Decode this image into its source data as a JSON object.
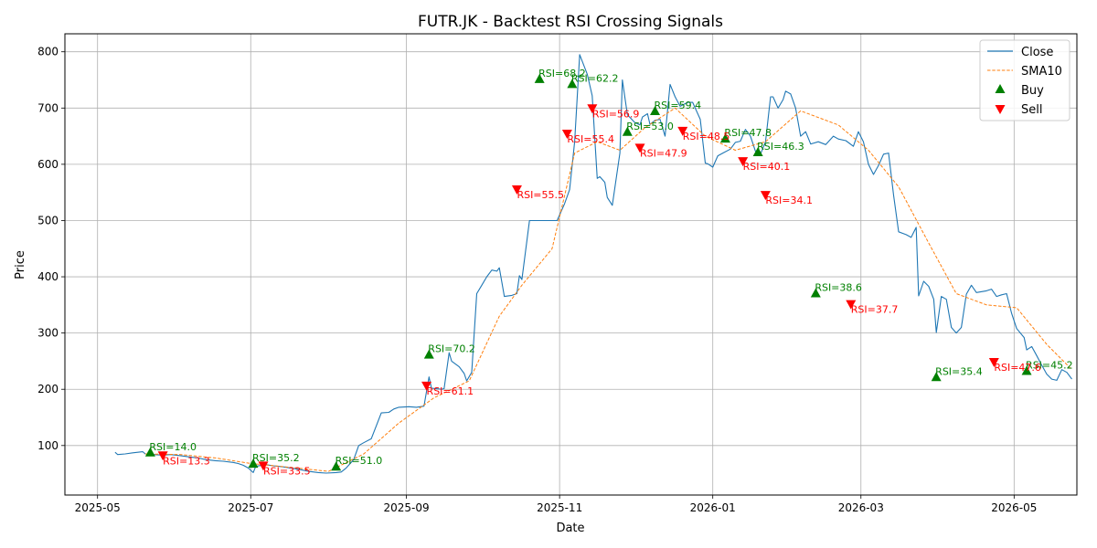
{
  "chart_data": {
    "type": "line",
    "title": "FUTR.JK - Backtest RSI Crossing Signals",
    "xlabel": "Date",
    "ylabel": "Price",
    "x_range": [
      "2025-04-18",
      "2026-05-26"
    ],
    "ylim": [
      12,
      832
    ],
    "x_ticks": [
      {
        "date": "2025-05-01",
        "label": "2025-05"
      },
      {
        "date": "2025-07-01",
        "label": "2025-07"
      },
      {
        "date": "2025-09-01",
        "label": "2025-09"
      },
      {
        "date": "2025-11-01",
        "label": "2025-11"
      },
      {
        "date": "2026-01-01",
        "label": "2026-01"
      },
      {
        "date": "2026-03-01",
        "label": "2026-03"
      },
      {
        "date": "2026-05-01",
        "label": "2026-05"
      }
    ],
    "y_ticks": [
      100,
      200,
      300,
      400,
      500,
      600,
      700,
      800
    ],
    "grid": true,
    "legend": {
      "position": "top-right",
      "entries": [
        {
          "label": "Close",
          "kind": "line",
          "color": "#1f77b4"
        },
        {
          "label": "SMA10",
          "kind": "dashed",
          "color": "#ff7f0e"
        },
        {
          "label": "Buy",
          "kind": "triangle-up",
          "color": "#008000"
        },
        {
          "label": "Sell",
          "kind": "triangle-down",
          "color": "#ff0000"
        }
      ]
    },
    "series": [
      {
        "name": "Close",
        "color": "#1f77b4",
        "style": "solid",
        "points": [
          [
            "2025-05-08",
            88
          ],
          [
            "2025-05-09",
            84
          ],
          [
            "2025-05-12",
            85
          ],
          [
            "2025-05-15",
            87
          ],
          [
            "2025-05-19",
            89
          ],
          [
            "2025-05-20",
            85
          ],
          [
            "2025-05-23",
            84
          ],
          [
            "2025-05-27",
            83
          ],
          [
            "2025-05-30",
            84
          ],
          [
            "2025-06-03",
            82
          ],
          [
            "2025-06-06",
            80
          ],
          [
            "2025-06-10",
            78
          ],
          [
            "2025-06-13",
            75
          ],
          [
            "2025-06-17",
            73
          ],
          [
            "2025-06-20",
            72
          ],
          [
            "2025-06-24",
            70
          ],
          [
            "2025-06-26",
            68
          ],
          [
            "2025-06-28",
            65
          ],
          [
            "2025-06-30",
            60
          ],
          [
            "2025-07-02",
            52
          ],
          [
            "2025-07-03",
            63
          ],
          [
            "2025-07-07",
            66
          ],
          [
            "2025-07-10",
            64
          ],
          [
            "2025-07-14",
            62
          ],
          [
            "2025-07-17",
            60
          ],
          [
            "2025-07-21",
            57
          ],
          [
            "2025-07-24",
            54
          ],
          [
            "2025-07-28",
            52
          ],
          [
            "2025-07-31",
            51
          ],
          [
            "2025-08-04",
            52
          ],
          [
            "2025-08-06",
            53
          ],
          [
            "2025-08-08",
            60
          ],
          [
            "2025-08-11",
            75
          ],
          [
            "2025-08-13",
            100
          ],
          [
            "2025-08-15",
            105
          ],
          [
            "2025-08-18",
            112
          ],
          [
            "2025-08-20",
            135
          ],
          [
            "2025-08-22",
            158
          ],
          [
            "2025-08-25",
            159
          ],
          [
            "2025-08-27",
            165
          ],
          [
            "2025-08-29",
            168
          ],
          [
            "2025-09-02",
            169
          ],
          [
            "2025-09-05",
            168
          ],
          [
            "2025-09-08",
            170
          ],
          [
            "2025-09-10",
            222
          ],
          [
            "2025-09-11",
            202
          ],
          [
            "2025-09-15",
            200
          ],
          [
            "2025-09-16",
            201
          ],
          [
            "2025-09-18",
            265
          ],
          [
            "2025-09-19",
            250
          ],
          [
            "2025-09-22",
            240
          ],
          [
            "2025-09-24",
            228
          ],
          [
            "2025-09-25",
            215
          ],
          [
            "2025-09-27",
            230
          ],
          [
            "2025-09-29",
            370
          ],
          [
            "2025-10-01",
            385
          ],
          [
            "2025-10-03",
            400
          ],
          [
            "2025-10-05",
            412
          ],
          [
            "2025-10-07",
            410
          ],
          [
            "2025-10-08",
            416
          ],
          [
            "2025-10-10",
            365
          ],
          [
            "2025-10-13",
            367
          ],
          [
            "2025-10-15",
            370
          ],
          [
            "2025-10-16",
            402
          ],
          [
            "2025-10-17",
            395
          ],
          [
            "2025-10-20",
            500
          ],
          [
            "2025-10-24",
            500
          ],
          [
            "2025-10-28",
            500
          ],
          [
            "2025-10-31",
            500
          ],
          [
            "2025-11-03",
            530
          ],
          [
            "2025-11-05",
            555
          ],
          [
            "2025-11-07",
            640
          ],
          [
            "2025-11-09",
            795
          ],
          [
            "2025-11-12",
            760
          ],
          [
            "2025-11-14",
            722
          ],
          [
            "2025-11-16",
            575
          ],
          [
            "2025-11-17",
            578
          ],
          [
            "2025-11-19",
            568
          ],
          [
            "2025-11-20",
            541
          ],
          [
            "2025-11-22",
            527
          ],
          [
            "2025-11-25",
            620
          ],
          [
            "2025-11-26",
            750
          ],
          [
            "2025-11-28",
            688
          ],
          [
            "2025-12-01",
            674
          ],
          [
            "2025-12-03",
            670
          ],
          [
            "2025-12-04",
            684
          ],
          [
            "2025-12-06",
            690
          ],
          [
            "2025-12-07",
            671
          ],
          [
            "2025-12-09",
            678
          ],
          [
            "2025-12-11",
            680
          ],
          [
            "2025-12-13",
            650
          ],
          [
            "2025-12-15",
            742
          ],
          [
            "2025-12-17",
            720
          ],
          [
            "2025-12-19",
            703
          ],
          [
            "2025-12-22",
            710
          ],
          [
            "2025-12-24",
            710
          ],
          [
            "2025-12-27",
            680
          ],
          [
            "2025-12-29",
            602
          ],
          [
            "2025-12-30",
            601
          ],
          [
            "2026-01-01",
            595
          ],
          [
            "2026-01-03",
            615
          ],
          [
            "2026-01-05",
            620
          ],
          [
            "2026-01-08",
            627
          ],
          [
            "2026-01-10",
            639
          ],
          [
            "2026-01-12",
            641
          ],
          [
            "2026-01-14",
            662
          ],
          [
            "2026-01-16",
            650
          ],
          [
            "2026-01-18",
            623
          ],
          [
            "2026-01-20",
            618
          ],
          [
            "2026-01-22",
            640
          ],
          [
            "2026-01-24",
            720
          ],
          [
            "2026-01-25",
            720
          ],
          [
            "2026-01-27",
            700
          ],
          [
            "2026-01-29",
            715
          ],
          [
            "2026-01-30",
            730
          ],
          [
            "2026-02-01",
            725
          ],
          [
            "2026-02-03",
            700
          ],
          [
            "2026-02-05",
            650
          ],
          [
            "2026-02-07",
            658
          ],
          [
            "2026-02-09",
            636
          ],
          [
            "2026-02-12",
            640
          ],
          [
            "2026-02-15",
            635
          ],
          [
            "2026-02-18",
            650
          ],
          [
            "2026-02-20",
            645
          ],
          [
            "2026-02-23",
            642
          ],
          [
            "2026-02-26",
            632
          ],
          [
            "2026-02-28",
            658
          ],
          [
            "2026-03-02",
            640
          ],
          [
            "2026-03-04",
            600
          ],
          [
            "2026-03-06",
            582
          ],
          [
            "2026-03-08",
            598
          ],
          [
            "2026-03-10",
            618
          ],
          [
            "2026-03-12",
            620
          ],
          [
            "2026-03-14",
            545
          ],
          [
            "2026-03-16",
            480
          ],
          [
            "2026-03-19",
            475
          ],
          [
            "2026-03-21",
            470
          ],
          [
            "2026-03-23",
            488
          ],
          [
            "2026-03-24",
            366
          ],
          [
            "2026-03-26",
            392
          ],
          [
            "2026-03-28",
            383
          ],
          [
            "2026-03-30",
            360
          ],
          [
            "2026-03-31",
            301
          ],
          [
            "2026-04-02",
            365
          ],
          [
            "2026-04-04",
            360
          ],
          [
            "2026-04-06",
            310
          ],
          [
            "2026-04-08",
            300
          ],
          [
            "2026-04-10",
            310
          ],
          [
            "2026-04-12",
            369
          ],
          [
            "2026-04-14",
            385
          ],
          [
            "2026-04-16",
            372
          ],
          [
            "2026-04-20",
            375
          ],
          [
            "2026-04-22",
            378
          ],
          [
            "2026-04-24",
            365
          ],
          [
            "2026-04-26",
            368
          ],
          [
            "2026-04-28",
            370
          ],
          [
            "2026-04-30",
            335
          ],
          [
            "2026-05-02",
            308
          ],
          [
            "2026-05-05",
            292
          ],
          [
            "2026-05-06",
            270
          ],
          [
            "2026-05-08",
            276
          ],
          [
            "2026-05-10",
            260
          ],
          [
            "2026-05-12",
            243
          ],
          [
            "2026-05-14",
            227
          ],
          [
            "2026-05-16",
            218
          ],
          [
            "2026-05-18",
            216
          ],
          [
            "2026-05-20",
            235
          ],
          [
            "2026-05-22",
            230
          ],
          [
            "2026-05-24",
            218
          ]
        ]
      },
      {
        "name": "SMA10",
        "color": "#ff7f0e",
        "style": "dashed",
        "points": [
          [
            "2025-05-20",
            85
          ],
          [
            "2025-06-03",
            84
          ],
          [
            "2025-06-17",
            78
          ],
          [
            "2025-07-01",
            68
          ],
          [
            "2025-07-15",
            62
          ],
          [
            "2025-08-01",
            54
          ],
          [
            "2025-08-15",
            85
          ],
          [
            "2025-08-29",
            140
          ],
          [
            "2025-09-12",
            185
          ],
          [
            "2025-09-26",
            215
          ],
          [
            "2025-10-08",
            330
          ],
          [
            "2025-10-17",
            385
          ],
          [
            "2025-10-29",
            450
          ],
          [
            "2025-11-07",
            620
          ],
          [
            "2025-11-16",
            640
          ],
          [
            "2025-11-25",
            625
          ],
          [
            "2025-12-05",
            665
          ],
          [
            "2025-12-17",
            700
          ],
          [
            "2025-12-29",
            650
          ],
          [
            "2026-01-10",
            625
          ],
          [
            "2026-01-22",
            640
          ],
          [
            "2026-02-05",
            695
          ],
          [
            "2026-02-20",
            670
          ],
          [
            "2026-03-04",
            625
          ],
          [
            "2026-03-16",
            560
          ],
          [
            "2026-03-28",
            460
          ],
          [
            "2026-04-08",
            370
          ],
          [
            "2026-04-20",
            350
          ],
          [
            "2026-05-02",
            345
          ],
          [
            "2026-05-14",
            280
          ],
          [
            "2026-05-24",
            235
          ]
        ]
      }
    ],
    "buy_signals": [
      {
        "date": "2025-05-22",
        "price": 87,
        "label": "RSI=14.0"
      },
      {
        "date": "2025-07-02",
        "price": 67,
        "label": "RSI=35.2"
      },
      {
        "date": "2025-08-04",
        "price": 62,
        "label": "RSI=51.0"
      },
      {
        "date": "2025-09-10",
        "price": 261,
        "label": "RSI=70.2"
      },
      {
        "date": "2025-10-24",
        "price": 751,
        "label": "RSI=68.2"
      },
      {
        "date": "2025-11-06",
        "price": 742,
        "label": "RSI=62.2"
      },
      {
        "date": "2025-11-28",
        "price": 657,
        "label": "RSI=53.0"
      },
      {
        "date": "2025-12-09",
        "price": 694,
        "label": "RSI=59.4"
      },
      {
        "date": "2026-01-06",
        "price": 645,
        "label": "RSI=47.8"
      },
      {
        "date": "2026-01-19",
        "price": 621,
        "label": "RSI=46.3"
      },
      {
        "date": "2026-02-11",
        "price": 370,
        "label": "RSI=38.6"
      },
      {
        "date": "2026-03-31",
        "price": 221,
        "label": "RSI=35.4"
      },
      {
        "date": "2026-05-06",
        "price": 232,
        "label": "RSI=45.2"
      }
    ],
    "sell_signals": [
      {
        "date": "2025-05-27",
        "price": 83,
        "label": "RSI=13.3"
      },
      {
        "date": "2025-07-06",
        "price": 65,
        "label": "RSI=33.5"
      },
      {
        "date": "2025-09-09",
        "price": 207,
        "label": "RSI=61.1"
      },
      {
        "date": "2025-10-15",
        "price": 556,
        "label": "RSI=55.5"
      },
      {
        "date": "2025-11-04",
        "price": 655,
        "label": "RSI=55.4"
      },
      {
        "date": "2025-11-14",
        "price": 700,
        "label": "RSI=56.9"
      },
      {
        "date": "2025-12-03",
        "price": 630,
        "label": "RSI=47.9"
      },
      {
        "date": "2025-12-20",
        "price": 660,
        "label": "RSI=48.5"
      },
      {
        "date": "2026-01-13",
        "price": 606,
        "label": "RSI=40.1"
      },
      {
        "date": "2026-01-22",
        "price": 546,
        "label": "RSI=34.1"
      },
      {
        "date": "2026-02-25",
        "price": 352,
        "label": "RSI=37.7"
      },
      {
        "date": "2026-04-23",
        "price": 249,
        "label": "RSI=47.6"
      }
    ]
  }
}
